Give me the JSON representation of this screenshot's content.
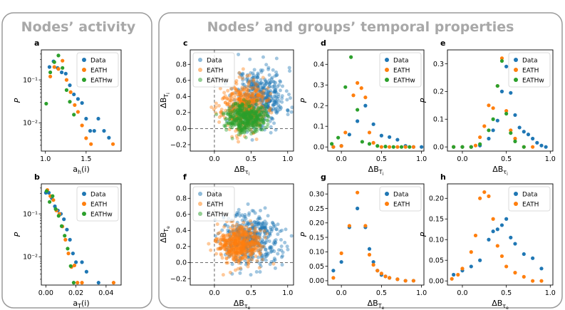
{
  "section_titles": {
    "left": "Nodes’ activity",
    "right": "Nodes’ and groups’ temporal properties"
  },
  "colors": {
    "data": "#1f77b4",
    "eath": "#ff7f0e",
    "eathw": "#2ca02c",
    "frame": "#9a9a9a",
    "title": "#a8a8a8"
  },
  "chart_data": [
    {
      "id": "a",
      "type": "scatter",
      "panel_label": "a",
      "xlabel": "a_h(i)",
      "ylabel": "P",
      "yscale": "log",
      "xlim": [
        0.95,
        1.93
      ],
      "ylim": [
        0.0022,
        0.5
      ],
      "xticks": [
        1.0,
        1.5
      ],
      "xtick_labels": [
        "1.0",
        "1.5"
      ],
      "yticks": [
        0.1,
        0.01
      ],
      "ytick_labels": [
        "10⁻¹",
        "10⁻²"
      ],
      "legend": [
        "Data",
        "EATH",
        "EATHw"
      ],
      "series": [
        {
          "name": "Data",
          "x": [
            1.05,
            1.1,
            1.15,
            1.2,
            1.25,
            1.3,
            1.35,
            1.4,
            1.45,
            1.5,
            1.55,
            1.6,
            1.65,
            1.72,
            1.78
          ],
          "y": [
            0.2,
            0.27,
            0.19,
            0.15,
            0.14,
            0.075,
            0.046,
            0.036,
            0.029,
            0.0125,
            0.0065,
            0.0065,
            0.0125,
            0.0065,
            0.0045
          ]
        },
        {
          "name": "EATH",
          "x": [
            1.06,
            1.11,
            1.16,
            1.21,
            1.26,
            1.31,
            1.36,
            1.4,
            1.45,
            1.5,
            1.56,
            1.83
          ],
          "y": [
            0.12,
            0.2,
            0.18,
            0.28,
            0.1,
            0.052,
            0.026,
            0.018,
            0.0087,
            0.0044,
            0.0032,
            0.0032
          ]
        },
        {
          "name": "EATHw",
          "x": [
            1.01,
            1.06,
            1.11,
            1.16,
            1.21,
            1.26,
            1.3,
            1.35
          ],
          "y": [
            0.028,
            0.15,
            0.26,
            0.37,
            0.19,
            0.058,
            0.031,
            0.0155
          ]
        }
      ]
    },
    {
      "id": "b",
      "type": "scatter",
      "panel_label": "b",
      "xlabel": "a_T(i)",
      "ylabel": "P",
      "yscale": "log",
      "xlim": [
        -0.003,
        0.05
      ],
      "ylim": [
        0.0022,
        0.5
      ],
      "xticks": [
        0.0,
        0.02,
        0.04
      ],
      "xtick_labels": [
        "0.00",
        "0.02",
        "0.04"
      ],
      "yticks": [
        0.1,
        0.01
      ],
      "ytick_labels": [
        "10⁻¹",
        "10⁻²"
      ],
      "legend": [
        "Data",
        "EATH",
        "EATHw"
      ],
      "series": [
        {
          "name": "Data",
          "x": [
            0.0,
            0.002,
            0.004,
            0.006,
            0.008,
            0.01,
            0.012,
            0.014,
            0.016,
            0.018,
            0.02,
            0.024,
            0.027,
            0.035
          ],
          "y": [
            0.31,
            0.31,
            0.23,
            0.15,
            0.12,
            0.1,
            0.075,
            0.043,
            0.025,
            0.012,
            0.0075,
            0.0075,
            0.0045,
            0.0025
          ]
        },
        {
          "name": "EATH",
          "x": [
            0.001,
            0.003,
            0.005,
            0.007,
            0.009,
            0.011,
            0.013,
            0.015,
            0.017,
            0.019,
            0.021,
            0.024,
            0.045
          ],
          "y": [
            0.36,
            0.26,
            0.21,
            0.12,
            0.1,
            0.051,
            0.025,
            0.012,
            0.0058,
            0.0063,
            0.0025,
            0.0025,
            0.0025
          ]
        },
        {
          "name": "EATHw",
          "x": [
            0.0005,
            0.0025,
            0.0045,
            0.0065,
            0.0085,
            0.0105,
            0.0125,
            0.0145,
            0.0165,
            0.0185
          ],
          "y": [
            0.34,
            0.19,
            0.26,
            0.13,
            0.09,
            0.052,
            0.031,
            0.0155,
            0.0061,
            0.0025
          ]
        }
      ]
    },
    {
      "id": "c",
      "type": "scatter",
      "panel_label": "c",
      "xlabel": "ΔB_τi",
      "ylabel": "ΔB_Ti",
      "xlim": [
        -0.33,
        1.08
      ],
      "ylim": [
        -0.28,
        0.98
      ],
      "xticks": [
        0.0,
        0.5,
        1.0
      ],
      "xtick_labels": [
        "0.0",
        "0.5",
        "1.0"
      ],
      "yticks": [
        -0.2,
        0.0,
        0.2,
        0.4,
        0.6,
        0.8
      ],
      "ytick_labels": [
        "−0.2",
        "0.0",
        "0.2",
        "0.4",
        "0.6",
        "0.8"
      ],
      "legend": [
        "Data",
        "EATH",
        "EATHw"
      ],
      "clouds": [
        {
          "name": "Data",
          "n": 420,
          "mx": 0.63,
          "sx": 0.17,
          "my": 0.4,
          "sy": 0.18,
          "seed": 11
        },
        {
          "name": "EATH",
          "n": 420,
          "mx": 0.4,
          "sx": 0.15,
          "my": 0.28,
          "sy": 0.15,
          "seed": 23
        },
        {
          "name": "EATHw",
          "n": 420,
          "mx": 0.43,
          "sx": 0.13,
          "my": 0.14,
          "sy": 0.09,
          "seed": 37
        }
      ]
    },
    {
      "id": "d",
      "type": "scatter",
      "panel_label": "d",
      "xlabel": "ΔB_Ti",
      "ylabel": "P",
      "xlim": [
        -0.17,
        1.03
      ],
      "ylim": [
        -0.02,
        0.47
      ],
      "xticks": [
        0.0,
        0.5,
        1.0
      ],
      "xtick_labels": [
        "0.0",
        "0.5",
        "1.0"
      ],
      "yticks": [
        0.0,
        0.1,
        0.2,
        0.3,
        0.4
      ],
      "ytick_labels": [
        "0.0",
        "0.1",
        "0.2",
        "0.3",
        "0.4"
      ],
      "legend": [
        "Data",
        "EATH",
        "EATHw"
      ],
      "series": [
        {
          "name": "Data",
          "x": [
            -0.1,
            0.0,
            0.1,
            0.2,
            0.3,
            0.4,
            0.5,
            0.6,
            0.7,
            0.8,
            0.9,
            1.0
          ],
          "y": [
            0.0,
            0.005,
            0.06,
            0.125,
            0.2,
            0.11,
            0.055,
            0.048,
            0.035,
            0.005,
            0.0,
            0.0
          ]
        },
        {
          "name": "EATH",
          "x": [
            -0.1,
            0.0,
            0.05,
            0.15,
            0.2,
            0.25,
            0.3,
            0.35,
            0.4,
            0.5,
            0.6,
            0.7,
            0.8,
            0.9
          ],
          "y": [
            0.0,
            0.005,
            0.07,
            0.25,
            0.31,
            0.285,
            0.24,
            0.07,
            0.02,
            0.0,
            0.0,
            0.0,
            0.0,
            0.0
          ]
        },
        {
          "name": "EATHw",
          "x": [
            -0.12,
            -0.04,
            0.05,
            0.12,
            0.2,
            0.26,
            0.35,
            0.45,
            0.55,
            0.65,
            0.75,
            0.85
          ],
          "y": [
            0.015,
            0.045,
            0.29,
            0.435,
            0.18,
            0.025,
            0.015,
            0.005,
            0.002,
            0.0,
            0.0,
            0.0
          ]
        }
      ]
    },
    {
      "id": "e",
      "type": "scatter",
      "panel_label": "e",
      "xlabel": "ΔB_τi",
      "ylabel": "P",
      "xlim": [
        -0.17,
        1.03
      ],
      "ylim": [
        -0.015,
        0.35
      ],
      "xticks": [
        0.0,
        0.5,
        1.0
      ],
      "xtick_labels": [
        "0.0",
        "0.5",
        "1.0"
      ],
      "yticks": [
        0.0,
        0.1,
        0.2,
        0.3
      ],
      "ytick_labels": [
        "0.0",
        "0.1",
        "0.2",
        "0.3"
      ],
      "legend": [
        "Data",
        "EATH",
        "EATHw"
      ],
      "series": [
        {
          "name": "Data",
          "x": [
            -0.1,
            0.0,
            0.1,
            0.2,
            0.3,
            0.35,
            0.4,
            0.45,
            0.5,
            0.55,
            0.6,
            0.65,
            0.7,
            0.75,
            0.8,
            0.85,
            0.9,
            0.95
          ],
          "y": [
            0.0,
            0.0,
            0.0,
            0.005,
            0.03,
            0.06,
            0.095,
            0.2,
            0.29,
            0.195,
            0.115,
            0.07,
            0.055,
            0.045,
            0.03,
            0.015,
            0.005,
            0.0
          ]
        },
        {
          "name": "EATH",
          "x": [
            -0.1,
            0.0,
            0.1,
            0.15,
            0.2,
            0.25,
            0.3,
            0.35,
            0.4,
            0.45,
            0.5,
            0.55,
            0.6,
            0.7,
            0.8
          ],
          "y": [
            0.0,
            0.0,
            0.0,
            0.005,
            0.035,
            0.075,
            0.15,
            0.14,
            0.22,
            0.32,
            0.13,
            0.06,
            0.03,
            0.0,
            0.0
          ]
        },
        {
          "name": "EATHw",
          "x": [
            -0.1,
            0.0,
            0.1,
            0.2,
            0.3,
            0.35,
            0.4,
            0.45,
            0.5,
            0.55,
            0.6,
            0.7
          ],
          "y": [
            0.0,
            0.0,
            0.0,
            0.01,
            0.06,
            0.1,
            0.22,
            0.31,
            0.12,
            0.05,
            0.02,
            0.0
          ]
        }
      ]
    },
    {
      "id": "f",
      "type": "scatter",
      "panel_label": "f",
      "xlabel": "ΔB_τe",
      "ylabel": "ΔB_Te",
      "xlim": [
        -0.33,
        1.08
      ],
      "ylim": [
        -0.28,
        0.98
      ],
      "xticks": [
        0.0,
        0.5,
        1.0
      ],
      "xtick_labels": [
        "0.0",
        "0.5",
        "1.0"
      ],
      "yticks": [
        -0.2,
        0.0,
        0.2,
        0.4,
        0.6,
        0.8
      ],
      "ytick_labels": [
        "−0.2",
        "0.0",
        "0.2",
        "0.4",
        "0.6",
        "0.8"
      ],
      "legend": [
        "Data",
        "EATH",
        "EATHw"
      ],
      "clouds": [
        {
          "name": "Data",
          "n": 420,
          "mx": 0.52,
          "sx": 0.2,
          "my": 0.28,
          "sy": 0.17,
          "seed": 51
        },
        {
          "name": "EATH",
          "n": 480,
          "mx": 0.33,
          "sx": 0.14,
          "my": 0.22,
          "sy": 0.11,
          "seed": 67
        }
      ]
    },
    {
      "id": "g",
      "type": "scatter",
      "panel_label": "g",
      "xlabel": "ΔB_Te",
      "ylabel": "P",
      "xlim": [
        -0.17,
        1.03
      ],
      "ylim": [
        -0.015,
        0.335
      ],
      "xticks": [
        0.0,
        0.5,
        1.0
      ],
      "xtick_labels": [
        "0.0",
        "0.5",
        "1.0"
      ],
      "yticks": [
        0.0,
        0.05,
        0.1,
        0.15,
        0.2,
        0.25,
        0.3
      ],
      "ytick_labels": [
        "0.00",
        "0.05",
        "0.10",
        "0.15",
        "0.20",
        "0.25",
        "0.30"
      ],
      "legend": [
        "Data",
        "EATH"
      ],
      "series": [
        {
          "name": "Data",
          "x": [
            -0.1,
            0.0,
            0.1,
            0.2,
            0.3,
            0.35,
            0.4,
            0.45,
            0.5,
            0.55,
            0.6,
            0.7,
            0.8,
            0.9
          ],
          "y": [
            0.035,
            0.065,
            0.185,
            0.25,
            0.185,
            0.11,
            0.065,
            0.035,
            0.02,
            0.015,
            0.01,
            0.005,
            0.0,
            0.0
          ]
        },
        {
          "name": "EATH",
          "x": [
            -0.1,
            0.0,
            0.1,
            0.2,
            0.3,
            0.35,
            0.4,
            0.45,
            0.5,
            0.55,
            0.6,
            0.7,
            0.8,
            0.9
          ],
          "y": [
            0.01,
            0.095,
            0.19,
            0.305,
            0.19,
            0.09,
            0.055,
            0.035,
            0.025,
            0.015,
            0.01,
            0.005,
            0.0,
            0.0
          ]
        }
      ]
    },
    {
      "id": "h",
      "type": "scatter",
      "panel_label": "h",
      "xlabel": "ΔB_τe",
      "ylabel": "P",
      "xlim": [
        -0.17,
        1.03
      ],
      "ylim": [
        -0.01,
        0.235
      ],
      "xticks": [
        0.0,
        0.5,
        1.0
      ],
      "xtick_labels": [
        "0.0",
        "0.5",
        "1.0"
      ],
      "yticks": [
        0.0,
        0.05,
        0.1,
        0.15,
        0.2
      ],
      "ytick_labels": [
        "0.00",
        "0.05",
        "0.10",
        "0.15",
        "0.20"
      ],
      "legend": [
        "Data",
        "EATH"
      ],
      "series": [
        {
          "name": "Data",
          "x": [
            -0.1,
            0.0,
            0.1,
            0.2,
            0.3,
            0.35,
            0.4,
            0.45,
            0.5,
            0.55,
            0.6,
            0.7,
            0.8,
            0.9
          ],
          "y": [
            0.015,
            0.025,
            0.035,
            0.05,
            0.1,
            0.12,
            0.125,
            0.135,
            0.15,
            0.105,
            0.09,
            0.065,
            0.055,
            0.03
          ]
        },
        {
          "name": "EATH",
          "x": [
            -0.12,
            -0.05,
            0.0,
            0.1,
            0.15,
            0.2,
            0.25,
            0.3,
            0.35,
            0.4,
            0.45,
            0.5,
            0.6,
            0.7,
            0.8,
            0.9
          ],
          "y": [
            0.005,
            0.015,
            0.03,
            0.07,
            0.11,
            0.2,
            0.215,
            0.205,
            0.15,
            0.085,
            0.06,
            0.035,
            0.02,
            0.01,
            0.0,
            0.0
          ]
        }
      ]
    }
  ]
}
